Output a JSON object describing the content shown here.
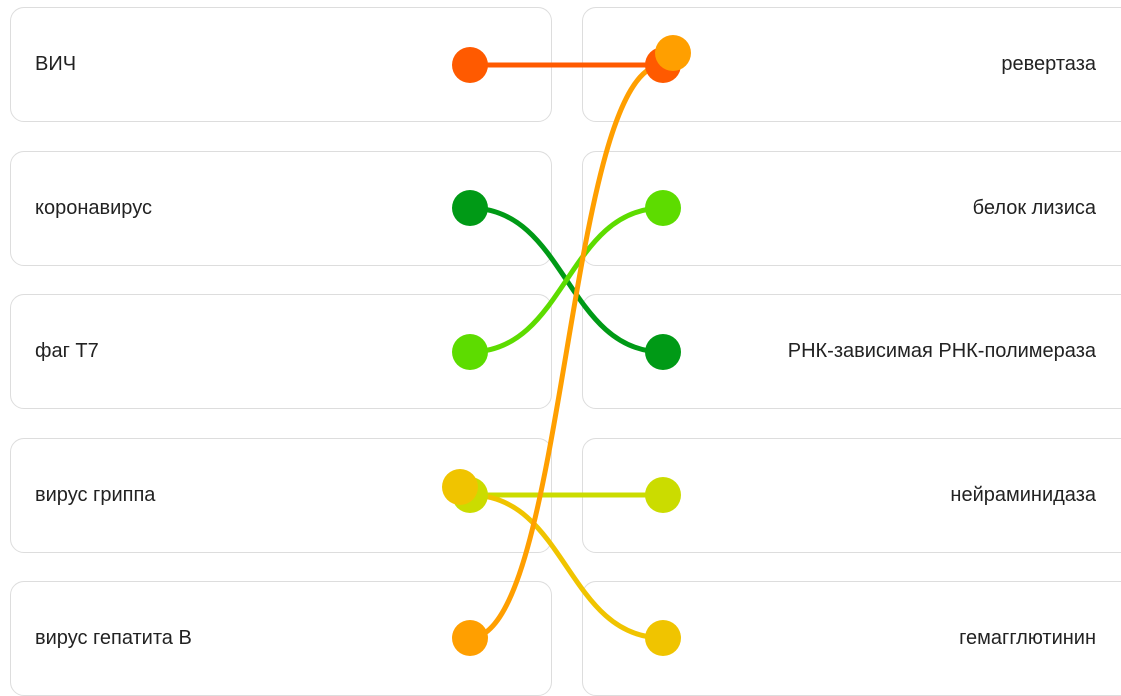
{
  "left_items": [
    {
      "label": "ВИЧ"
    },
    {
      "label": "коронавирус"
    },
    {
      "label": "фаг Т7"
    },
    {
      "label": "вирус гриппа"
    },
    {
      "label": "вирус гепатита В"
    }
  ],
  "right_items": [
    {
      "label": "ревертаза"
    },
    {
      "label": "белок лизиса"
    },
    {
      "label": "РНК-зависимая РНК-полимераза"
    },
    {
      "label": "нейраминидаза"
    },
    {
      "label": "гемагглютинин"
    }
  ],
  "connections": [
    {
      "from": 0,
      "to": 0,
      "color": "#ff5a00"
    },
    {
      "from": 1,
      "to": 2,
      "color": "#009a16"
    },
    {
      "from": 2,
      "to": 1,
      "color": "#5ddc00"
    },
    {
      "from": 3,
      "to": 3,
      "color": "#cbdc00"
    },
    {
      "from": 3,
      "to": 4,
      "color": "#f0c400"
    },
    {
      "from": 4,
      "to": 0,
      "color": "#ff9f00"
    }
  ]
}
